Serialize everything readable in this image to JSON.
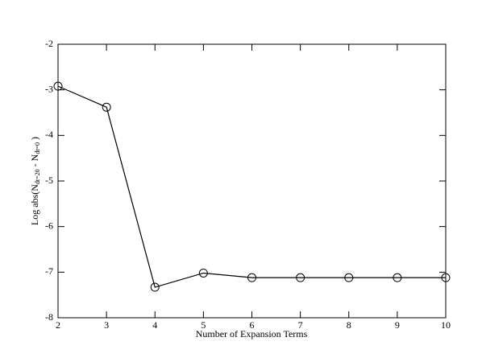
{
  "chart_data": {
    "type": "line",
    "x_label": "Number of Expansion Terms",
    "y_label_parts": [
      "Log abs(N",
      "dt=20",
      " - N",
      "dt=0",
      " )"
    ],
    "x": [
      2,
      3,
      4,
      5,
      6,
      7,
      8,
      9,
      10
    ],
    "series": [
      {
        "color": "#000000",
        "marker": "circle",
        "values": [
          -2.92,
          -3.38,
          -7.33,
          -7.02,
          -7.12,
          -7.12,
          -7.12,
          -7.12,
          -7.12
        ]
      }
    ],
    "xlim": [
      2,
      10
    ],
    "xticks": [
      2,
      3,
      4,
      5,
      6,
      7,
      8,
      9,
      10
    ],
    "ylim": [
      -8,
      -2
    ],
    "yticks": [
      -8,
      -7,
      -6,
      -5,
      -4,
      -3,
      -2
    ],
    "grid": false
  }
}
